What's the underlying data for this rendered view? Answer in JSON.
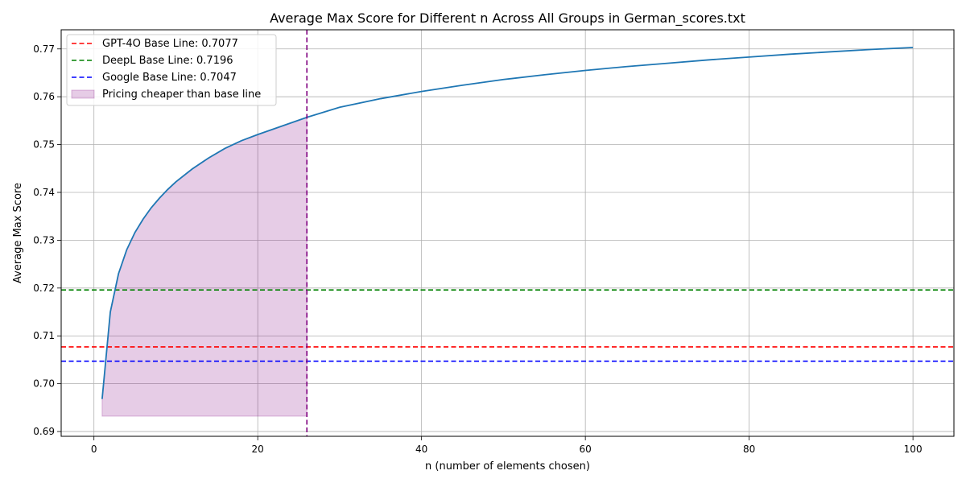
{
  "chart_data": {
    "type": "line",
    "title": "Average Max Score for Different n Across All Groups in German_scores.txt",
    "xlabel": "n (number of elements chosen)",
    "ylabel": "Average Max Score",
    "xlim": [
      -4,
      105
    ],
    "ylim": [
      0.689,
      0.774
    ],
    "xticks": [
      0,
      20,
      40,
      60,
      80,
      100
    ],
    "xtick_labels": [
      "0",
      "20",
      "40",
      "60",
      "80",
      "100"
    ],
    "yticks": [
      0.69,
      0.7,
      0.71,
      0.72,
      0.73,
      0.74,
      0.75,
      0.76,
      0.77
    ],
    "ytick_labels": [
      "0.69",
      "0.70",
      "0.71",
      "0.72",
      "0.73",
      "0.74",
      "0.75",
      "0.76",
      "0.77"
    ],
    "grid": true,
    "legend_position": "top-left",
    "series": [
      {
        "color": "#1f77b4",
        "x": [
          1,
          2,
          3,
          4,
          5,
          6,
          7,
          8,
          9,
          10,
          12,
          14,
          16,
          18,
          20,
          22,
          24,
          26,
          30,
          35,
          40,
          45,
          50,
          55,
          60,
          65,
          70,
          75,
          80,
          85,
          90,
          95,
          100
        ],
        "y": [
          0.6968,
          0.715,
          0.723,
          0.728,
          0.7316,
          0.7344,
          0.7368,
          0.7388,
          0.7406,
          0.7422,
          0.7449,
          0.7472,
          0.7492,
          0.7508,
          0.7521,
          0.7533,
          0.7545,
          0.7557,
          0.7578,
          0.7596,
          0.7611,
          0.7624,
          0.7636,
          0.7646,
          0.7655,
          0.7663,
          0.767,
          0.7677,
          0.7683,
          0.7689,
          0.7694,
          0.7699,
          0.7703
        ]
      }
    ],
    "baselines": [
      {
        "label": "GPT-4O Base Line: 0.7077",
        "value": 0.7077,
        "color": "#ff0000"
      },
      {
        "label": "DeepL Base Line: 0.7196",
        "value": 0.7196,
        "color": "#008000"
      },
      {
        "label": "Google Base Line: 0.7047",
        "value": 0.7047,
        "color": "#0000ff"
      }
    ],
    "shaded_region": {
      "label": "Pricing cheaper than base line",
      "x_start": 1,
      "x_end": 26,
      "y_bottom": 0.6932,
      "color": "#800080"
    },
    "vline": {
      "x": 26,
      "color": "#800080"
    }
  }
}
